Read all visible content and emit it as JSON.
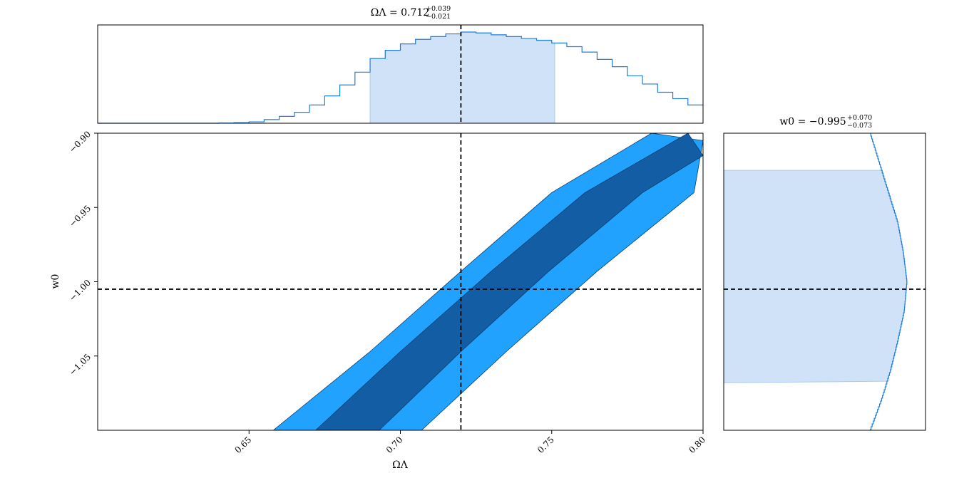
{
  "chart_data": [
    {
      "type": "histogram",
      "panel": "marginal-omega",
      "title": "ΩΛ = 0.712",
      "title_parts": {
        "lhs": "ΩΛ = 0.712",
        "plus": "+0.039",
        "minus": "−0.021"
      },
      "parameter": "ΩΛ",
      "xlim": [
        0.6,
        0.8
      ],
      "truth": 0.72,
      "credible_interval": [
        0.69,
        0.751
      ],
      "x": [
        0.6,
        0.605,
        0.61,
        0.615,
        0.62,
        0.625,
        0.63,
        0.635,
        0.64,
        0.645,
        0.65,
        0.655,
        0.66,
        0.665,
        0.67,
        0.675,
        0.68,
        0.685,
        0.69,
        0.695,
        0.7,
        0.705,
        0.71,
        0.715,
        0.72,
        0.725,
        0.73,
        0.735,
        0.74,
        0.745,
        0.75,
        0.755,
        0.76,
        0.765,
        0.77,
        0.775,
        0.78,
        0.785,
        0.79,
        0.795
      ],
      "density": [
        0,
        0,
        0,
        0,
        0,
        0,
        0,
        0,
        0.002,
        0.006,
        0.015,
        0.04,
        0.075,
        0.12,
        0.2,
        0.3,
        0.42,
        0.56,
        0.71,
        0.8,
        0.87,
        0.92,
        0.95,
        0.98,
        1.0,
        0.99,
        0.97,
        0.95,
        0.93,
        0.91,
        0.88,
        0.84,
        0.78,
        0.7,
        0.62,
        0.52,
        0.43,
        0.34,
        0.27,
        0.2
      ]
    },
    {
      "type": "contour",
      "panel": "joint-omega-w0",
      "xlabel": "ΩΛ",
      "ylabel": "w0",
      "xlim": [
        0.6,
        0.8
      ],
      "ylim": [
        -1.1,
        -0.9
      ],
      "xticks": [
        "0.65",
        "0.70",
        "0.75",
        "0.80"
      ],
      "yticks": [
        "−0.90",
        "−0.95",
        "−1.00",
        "−1.05"
      ],
      "truth": {
        "x": 0.72,
        "y": -1.005
      },
      "levels": [
        {
          "name": "outer",
          "color": "#22a2ff",
          "left_edge": [
            [
              0.658,
              -1.1
            ],
            [
              0.69,
              -1.047
            ],
            [
              0.72,
              -0.993
            ],
            [
              0.75,
              -0.94
            ],
            [
              0.783,
              -0.9
            ]
          ],
          "right_edge": [
            [
              0.707,
              -1.1
            ],
            [
              0.735,
              -1.047
            ],
            [
              0.765,
              -0.993
            ],
            [
              0.797,
              -0.94
            ],
            [
              0.8,
              -0.905
            ]
          ]
        },
        {
          "name": "inner",
          "color": "#125da4",
          "left_edge": [
            [
              0.672,
              -1.1
            ],
            [
              0.7,
              -1.047
            ],
            [
              0.73,
              -0.993
            ],
            [
              0.761,
              -0.94
            ],
            [
              0.795,
              -0.9
            ]
          ],
          "right_edge": [
            [
              0.693,
              -1.1
            ],
            [
              0.72,
              -1.047
            ],
            [
              0.749,
              -0.993
            ],
            [
              0.78,
              -0.94
            ],
            [
              0.8,
              -0.915
            ]
          ]
        }
      ]
    },
    {
      "type": "histogram",
      "panel": "marginal-w0",
      "orientation": "horizontal",
      "title_parts": {
        "lhs": "w0 = −0.995",
        "plus": "+0.070",
        "minus": "−0.073"
      },
      "parameter": "w0",
      "ylim": [
        -1.1,
        -0.9
      ],
      "truth": -1.005,
      "credible_interval": [
        -1.068,
        -0.925
      ],
      "y": [
        -0.9,
        -0.92,
        -0.94,
        -0.96,
        -0.98,
        -1.0,
        -1.02,
        -1.04,
        -1.06,
        -1.08,
        -1.1
      ],
      "density": [
        0.8,
        0.85,
        0.9,
        0.95,
        0.98,
        1.0,
        0.985,
        0.95,
        0.91,
        0.86,
        0.8
      ]
    }
  ],
  "colors": {
    "hist_line": "#1f7ee0",
    "hist_fill": "#cfe2f7",
    "outer": "#22a2ff",
    "inner": "#125da4",
    "truth": "#000000"
  }
}
